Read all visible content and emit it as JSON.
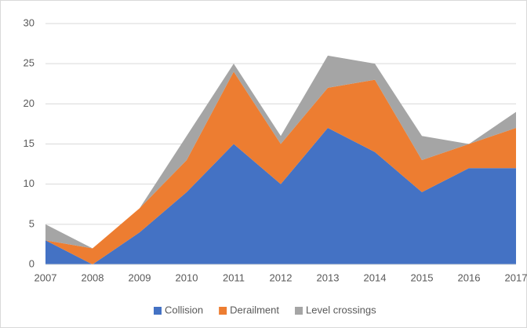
{
  "chart_data": {
    "type": "stacked_area",
    "categories": [
      "2007",
      "2008",
      "2009",
      "2010",
      "2011",
      "2012",
      "2013",
      "2014",
      "2015",
      "2016",
      "2017"
    ],
    "series": [
      {
        "name": "Collision",
        "color": "#4472c4",
        "values": [
          3,
          0,
          4,
          9,
          15,
          10,
          17,
          14,
          9,
          12,
          12
        ]
      },
      {
        "name": "Derailment",
        "color": "#ed7d31",
        "values": [
          0,
          2,
          3,
          4,
          9,
          5,
          5,
          9,
          4,
          3,
          5
        ]
      },
      {
        "name": "Level crossings",
        "color": "#a5a5a5",
        "values": [
          2,
          0,
          0,
          3,
          1,
          1,
          4,
          2,
          3,
          0,
          2
        ]
      }
    ],
    "ylim": [
      0,
      30
    ],
    "yticks": [
      0,
      5,
      10,
      15,
      20,
      25,
      30
    ],
    "grid": true,
    "legend": "bottom"
  }
}
